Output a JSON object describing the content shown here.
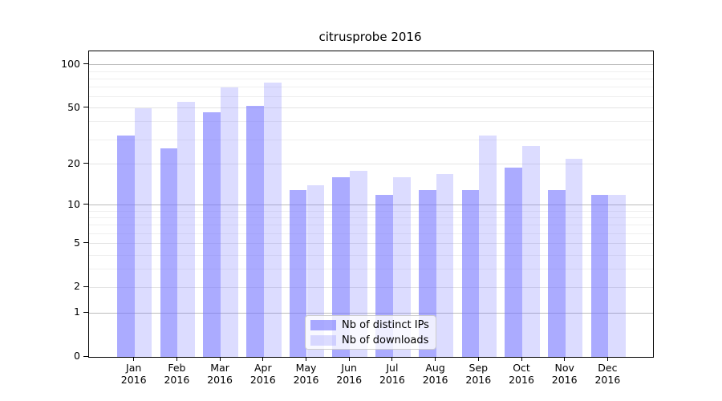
{
  "chart_data": {
    "type": "bar",
    "title": "citrusprobe 2016",
    "categories": [
      "Jan 2016",
      "Feb 2016",
      "Mar 2016",
      "Apr 2016",
      "May 2016",
      "Jun 2016",
      "Jul 2016",
      "Aug 2016",
      "Sep 2016",
      "Oct 2016",
      "Nov 2016",
      "Dec 2016"
    ],
    "x_tick_months": [
      "Jan",
      "Feb",
      "Mar",
      "Apr",
      "May",
      "Jun",
      "Jul",
      "Aug",
      "Sep",
      "Oct",
      "Nov",
      "Dec"
    ],
    "x_tick_year": "2016",
    "series": [
      {
        "name": "Nb of distinct IPs",
        "color": "#7777ff",
        "alpha": 0.62,
        "values": [
          32,
          26,
          47,
          52,
          13,
          16,
          12,
          13,
          13,
          19,
          13,
          12
        ]
      },
      {
        "name": "Nb of downloads",
        "color": "#7777ff",
        "alpha": 0.26,
        "values": [
          50,
          55,
          70,
          75,
          14,
          18,
          16,
          17,
          32,
          27,
          22,
          12
        ]
      }
    ],
    "yscale": "log1p",
    "ylim": [
      0,
      123
    ],
    "yticks": [
      100,
      50,
      20,
      10,
      5,
      2,
      1,
      0
    ],
    "ytick_labels": [
      "100",
      "50",
      "20",
      "10",
      "5",
      "2",
      "1",
      "0"
    ],
    "minor_yticks": [
      90,
      80,
      70,
      60,
      40,
      30,
      9,
      8,
      7,
      6,
      4,
      3
    ],
    "grid": true,
    "legend_position": "lower center",
    "grid_color_major_power": "#bcbcbc",
    "grid_color_labeled": "#e4e4e4",
    "grid_color_minor": "#efefef"
  }
}
